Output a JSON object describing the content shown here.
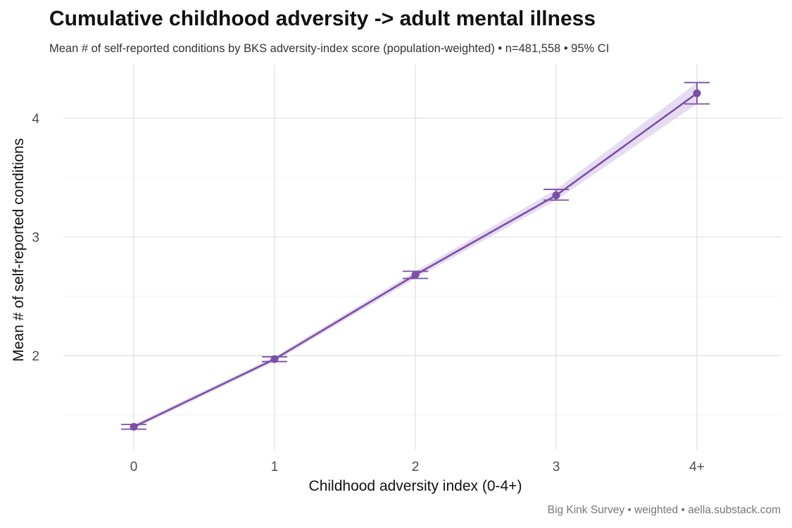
{
  "chart_data": {
    "type": "line",
    "title": "Cumulative childhood adversity -> adult mental illness",
    "subtitle": "Mean # of self-reported conditions by BKS adversity-index score (population-weighted)  •  n=481,558  •  95% CI",
    "caption": "Big Kink Survey  •  weighted  •  aella.substack.com",
    "xlabel": "Childhood adversity index (0-4+)",
    "ylabel": "Mean # of self-reported conditions",
    "categories": [
      "0",
      "1",
      "2",
      "3",
      "4+"
    ],
    "y_ticks": [
      "2",
      "3",
      "4"
    ],
    "y_tick_values": [
      2,
      3,
      4
    ],
    "ylim": [
      1.2,
      4.45
    ],
    "series": [
      {
        "values": [
          1.4,
          1.97,
          2.68,
          3.35,
          4.21
        ],
        "ci_low": [
          1.38,
          1.95,
          2.65,
          3.31,
          4.12
        ],
        "ci_high": [
          1.42,
          1.99,
          2.71,
          3.4,
          4.3
        ],
        "color": "#7b4fa6"
      }
    ],
    "band_color": "#dcd0ec",
    "grid": true,
    "legend": "none"
  }
}
